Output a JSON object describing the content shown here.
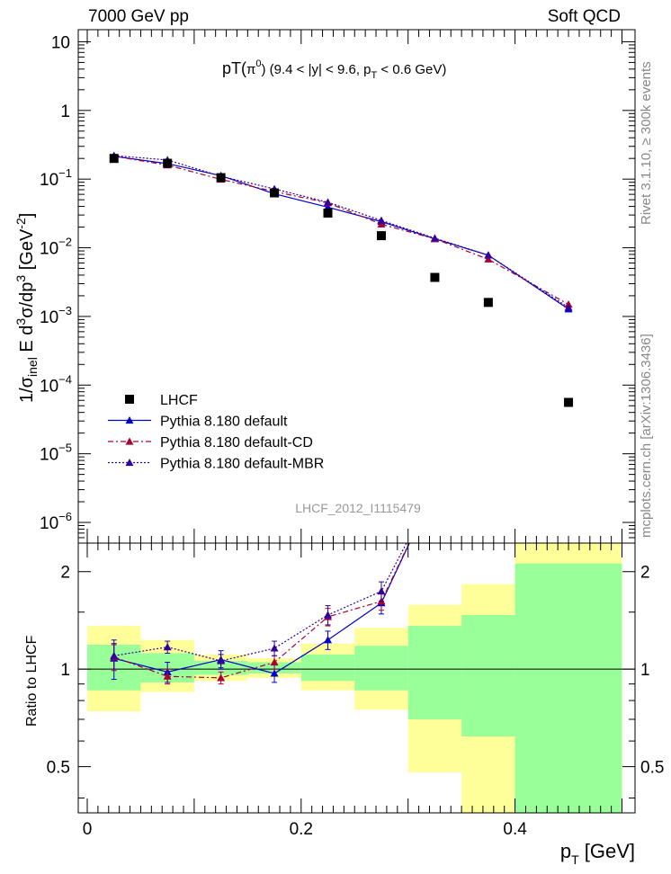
{
  "header": {
    "left": "7000 GeV pp",
    "right": "Soft QCD"
  },
  "side": {
    "top": "Rivet 3.1.10, ≥ 300k events",
    "bottom": "mcplots.cern.ch [arXiv:1306.3436]"
  },
  "colors": {
    "data": "#000000",
    "pythia_default": "#0000cc",
    "pythia_cd": "#aa0033",
    "pythia_mbr": "#330099",
    "band_inner": "#99ff99",
    "band_outer": "#ffff99"
  },
  "chart_data": [
    {
      "type": "scatter",
      "title": "pT(π⁰) (9.4 < |y| < 9.6, p_T < 0.6 GeV)",
      "title_main": "pT(",
      "title_pi": "π",
      "title_pi_sup": "0",
      "title_rest": ") (9.4 < |y| < 9.6, p",
      "title_sub": "T",
      "title_end": " < 0.6 GeV)",
      "ylabel": "1/σ_inel E d³σ/dp³ [GeV⁻²]",
      "yscale": "log",
      "ylim": [
        5e-07,
        15
      ],
      "xlim": [
        -0.01,
        0.51
      ],
      "yticks": [
        {
          "v": 10,
          "m": "10",
          "e": ""
        },
        {
          "v": 1,
          "m": "1",
          "e": ""
        },
        {
          "v": 0.1,
          "m": "10",
          "e": "−1"
        },
        {
          "v": 0.01,
          "m": "10",
          "e": "−2"
        },
        {
          "v": 0.001,
          "m": "10",
          "e": "−3"
        },
        {
          "v": 0.0001,
          "m": "10",
          "e": "−4"
        },
        {
          "v": 1e-05,
          "m": "10",
          "e": "−5"
        },
        {
          "v": 1e-06,
          "m": "10",
          "e": "−6"
        }
      ],
      "watermark": "LHCF_2012_I1115479",
      "legend": {
        "placement": "lower-left",
        "entries": [
          {
            "key": "data",
            "label": "LHCF"
          },
          {
            "key": "default",
            "label": "Pythia 8.180 default"
          },
          {
            "key": "cd",
            "label": "Pythia 8.180 default-CD"
          },
          {
            "key": "mbr",
            "label": "Pythia 8.180 default-MBR"
          }
        ]
      },
      "data": {
        "name": "LHCF",
        "x": [
          0.025,
          0.075,
          0.125,
          0.175,
          0.225,
          0.275,
          0.325,
          0.375,
          0.45
        ],
        "y": [
          0.2,
          0.17,
          0.105,
          0.063,
          0.032,
          0.015,
          0.0037,
          0.0016,
          5.6e-05
        ]
      },
      "series": [
        {
          "key": "default",
          "name": "Pythia 8.180 default",
          "style": "solid",
          "x": [
            0.025,
            0.075,
            0.125,
            0.175,
            0.225,
            0.275,
            0.325,
            0.375,
            0.45
          ],
          "y": [
            0.215,
            0.168,
            0.112,
            0.061,
            0.039,
            0.024,
            0.0135,
            0.0078,
            0.00128
          ]
        },
        {
          "key": "cd",
          "name": "Pythia 8.180 default-CD",
          "style": "dashdot",
          "x": [
            0.025,
            0.075,
            0.125,
            0.175,
            0.225,
            0.275,
            0.325,
            0.375,
            0.45
          ],
          "y": [
            0.215,
            0.16,
            0.099,
            0.066,
            0.045,
            0.022,
            0.0135,
            0.0068,
            0.0015
          ]
        },
        {
          "key": "mbr",
          "name": "Pythia 8.180 default-MBR",
          "style": "dotted",
          "x": [
            0.025,
            0.075,
            0.125,
            0.175,
            0.225,
            0.275,
            0.325,
            0.375,
            0.45
          ],
          "y": [
            0.22,
            0.19,
            0.11,
            0.072,
            0.046,
            0.025,
            0.0138,
            0.0078,
            0.00135
          ]
        }
      ]
    },
    {
      "type": "line",
      "ylabel": "Ratio to LHCF",
      "xlabel_main": "p",
      "xlabel_sub": "T",
      "xlabel_unit": " [GeV]",
      "yscale": "log",
      "ylim": [
        0.36,
        2.45
      ],
      "xlim": [
        -0.01,
        0.51
      ],
      "xticks": [
        {
          "v": 0,
          "t": "0"
        },
        {
          "v": 0.2,
          "t": "0.2"
        },
        {
          "v": 0.4,
          "t": "0.4"
        }
      ],
      "yticks": [
        {
          "v": 2,
          "t": "2"
        },
        {
          "v": 1,
          "t": "1"
        },
        {
          "v": 0.5,
          "t": "0.5"
        }
      ],
      "bands": [
        {
          "x0": 0.0,
          "x1": 0.05,
          "inner": [
            0.86,
            1.19
          ],
          "outer": [
            0.74,
            1.36
          ]
        },
        {
          "x0": 0.05,
          "x1": 0.1,
          "inner": [
            0.91,
            1.12
          ],
          "outer": [
            0.85,
            1.23
          ]
        },
        {
          "x0": 0.1,
          "x1": 0.15,
          "inner": [
            0.96,
            1.06
          ],
          "outer": [
            0.92,
            1.11
          ]
        },
        {
          "x0": 0.15,
          "x1": 0.2,
          "inner": [
            0.97,
            1.05
          ],
          "outer": [
            0.94,
            1.08
          ]
        },
        {
          "x0": 0.2,
          "x1": 0.25,
          "inner": [
            0.92,
            1.11
          ],
          "outer": [
            0.86,
            1.2
          ]
        },
        {
          "x0": 0.25,
          "x1": 0.3,
          "inner": [
            0.86,
            1.18
          ],
          "outer": [
            0.75,
            1.34
          ]
        },
        {
          "x0": 0.3,
          "x1": 0.35,
          "inner": [
            0.7,
            1.36
          ],
          "outer": [
            0.48,
            1.58
          ]
        },
        {
          "x0": 0.35,
          "x1": 0.4,
          "inner": [
            0.62,
            1.47
          ],
          "outer": [
            0.36,
            1.83
          ]
        },
        {
          "x0": 0.4,
          "x1": 0.5,
          "inner": [
            0.36,
            2.12
          ],
          "outer": [
            0.36,
            2.45
          ]
        }
      ],
      "series": [
        {
          "key": "default",
          "x": [
            0.025,
            0.075,
            0.125,
            0.175,
            0.225,
            0.275,
            0.325
          ],
          "y": [
            1.08,
            0.98,
            1.07,
            0.97,
            1.23,
            1.6,
            3.6
          ],
          "err": [
            0.15,
            0.07,
            0.07,
            0.06,
            0.08,
            0.12,
            0
          ]
        },
        {
          "key": "cd",
          "x": [
            0.025,
            0.075,
            0.125,
            0.175,
            0.225,
            0.275,
            0.325
          ],
          "y": [
            1.09,
            0.95,
            0.94,
            1.05,
            1.45,
            1.62,
            3.6
          ],
          "err": [
            0.1,
            0.05,
            0.04,
            0.05,
            0.09,
            0.1,
            0
          ]
        },
        {
          "key": "mbr",
          "x": [
            0.025,
            0.075,
            0.125,
            0.175,
            0.225,
            0.275,
            0.325
          ],
          "y": [
            1.1,
            1.17,
            1.06,
            1.16,
            1.47,
            1.74,
            3.6
          ],
          "err": [
            0.1,
            0.05,
            0.05,
            0.06,
            0.1,
            0.12,
            0
          ]
        }
      ]
    }
  ]
}
